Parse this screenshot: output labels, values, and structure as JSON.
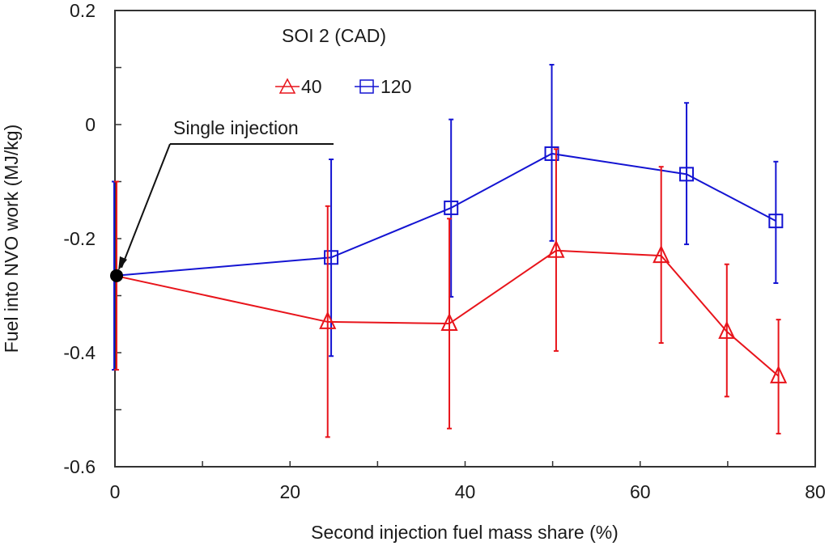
{
  "chart_data": {
    "type": "line",
    "title": "",
    "xlabel": "Second injection fuel mass share (%)",
    "ylabel": "Fuel into NVO work (MJ/kg)",
    "xlim": [
      0,
      80
    ],
    "ylim": [
      -0.6,
      0.2
    ],
    "xticks": [
      0,
      20,
      40,
      60,
      80
    ],
    "xtick_labels": [
      "0",
      "20",
      "40",
      "60",
      "80"
    ],
    "xminor_step": 10,
    "yticks": [
      0.2,
      0,
      -0.2,
      -0.4,
      -0.6
    ],
    "ytick_labels": [
      "0.2",
      "0",
      "-0.2",
      "-0.4",
      "-0.6"
    ],
    "yminor_step": 0.1,
    "grid": false,
    "legend": {
      "title": "SOI 2 (CAD)",
      "placement": "top-left",
      "entries": [
        {
          "label": "40",
          "marker": "triangle",
          "color": "#e8141b"
        },
        {
          "label": "120",
          "marker": "square",
          "color": "#1414d2"
        }
      ]
    },
    "series": [
      {
        "name": "40",
        "color": "#e8141b",
        "marker": "triangle",
        "x": [
          0,
          24.3,
          38.2,
          50.4,
          62.4,
          69.9,
          75.8
        ],
        "y": [
          -0.265,
          -0.346,
          -0.349,
          -0.221,
          -0.23,
          -0.363,
          -0.441
        ],
        "err_low": [
          -0.43,
          -0.548,
          -0.533,
          -0.397,
          -0.383,
          -0.477,
          -0.542
        ],
        "err_high": [
          -0.1,
          -0.143,
          -0.165,
          -0.043,
          -0.074,
          -0.245,
          -0.342
        ]
      },
      {
        "name": "120",
        "color": "#1414d2",
        "marker": "square",
        "x": [
          0,
          24.7,
          38.4,
          49.9,
          65.3,
          75.5
        ],
        "y": [
          -0.265,
          -0.233,
          -0.146,
          -0.051,
          -0.087,
          -0.169
        ],
        "err_low": [
          -0.43,
          -0.406,
          -0.302,
          -0.204,
          -0.21,
          -0.278
        ],
        "err_high": [
          -0.1,
          -0.061,
          0.009,
          0.105,
          0.038,
          -0.065
        ]
      }
    ],
    "annotations": [
      {
        "text": "Single injection",
        "target": {
          "x": 0,
          "y": -0.265
        },
        "marker_color": "#000000"
      }
    ]
  }
}
